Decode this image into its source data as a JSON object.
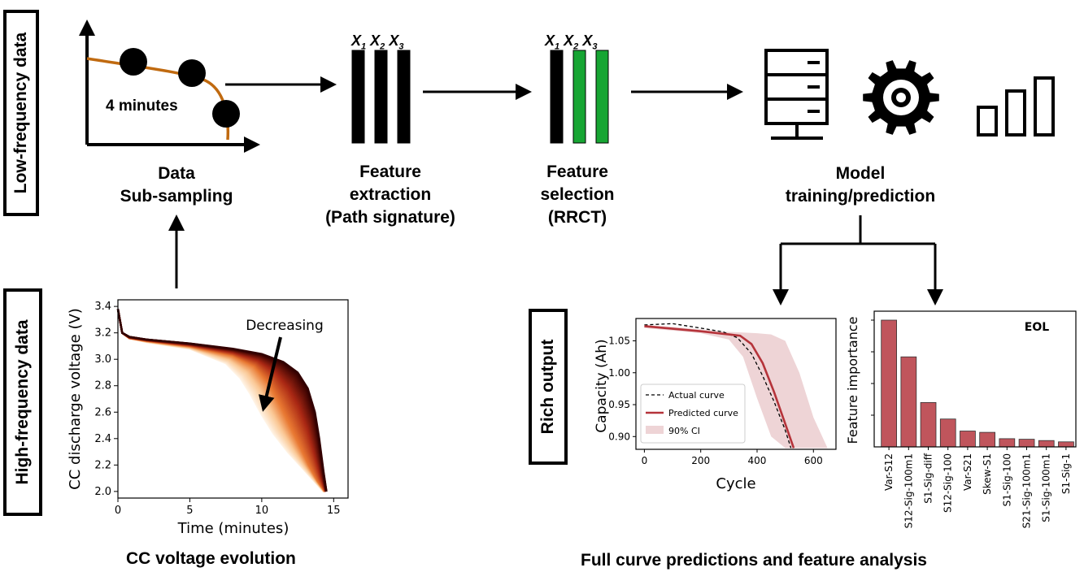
{
  "side_boxes": {
    "low_frequency": "Low-frequency data",
    "high_frequency": "High-frequency data",
    "rich_output": "Rich output"
  },
  "steps": {
    "subsampling": {
      "line1": "Data",
      "line2": "Sub-sampling",
      "annotation": "4 minutes"
    },
    "extraction": {
      "line1": "Feature",
      "line2": "extraction",
      "line3": "(Path signature)"
    },
    "selection": {
      "line1": "Feature",
      "line2": "selection",
      "line3": "(RRCT)"
    },
    "model": {
      "line1": "Model",
      "line2": "training/prediction"
    }
  },
  "feature_symbols": {
    "x1_base": "X",
    "x1_sub": "1",
    "x2_base": "X",
    "x2_sub": "2",
    "x3_base": "X",
    "x3_sub": "3"
  },
  "feature_bars": {
    "extraction_colors": [
      "#000000",
      "#000000",
      "#000000"
    ],
    "selection_colors": [
      "#000000",
      "#17a533",
      "#17a533"
    ]
  },
  "icons": [
    "server-icon",
    "gear-icon",
    "bar-chart-icon"
  ],
  "colors": {
    "curve_orange": "#c06a10",
    "predicted_red": "#b5333a",
    "ci_fill": "#eed4d6",
    "importance_bar": "#c0555c",
    "selected_green": "#17a533"
  },
  "voltage_chart": {
    "ylabel": "CC discharge voltage (V)",
    "xlabel": "Time (minutes)",
    "annotation": "Decreasing",
    "caption": "CC voltage evolution",
    "xticks": [
      "0",
      "5",
      "10",
      "15"
    ],
    "yticks": [
      "2.0",
      "2.2",
      "2.4",
      "2.6",
      "2.8",
      "3.0",
      "3.2",
      "3.4"
    ]
  },
  "capacity_chart": {
    "ylabel": "Capacity (Ah)",
    "xlabel": "Cycle",
    "xticks": [
      "0",
      "200",
      "400",
      "600"
    ],
    "yticks": [
      "0.90",
      "0.95",
      "1.00",
      "1.05"
    ],
    "legend": [
      "Actual curve",
      "Predicted curve",
      "90% CI"
    ]
  },
  "importance_chart": {
    "ylabel": "Feature importance",
    "title": "EOL",
    "caption": "Full curve predictions and feature analysis"
  },
  "chart_data": [
    {
      "type": "line",
      "xlabel": "Time (minutes)",
      "ylabel": "CC discharge voltage (V)",
      "xlim": [
        0,
        16
      ],
      "ylim": [
        1.95,
        3.45
      ],
      "grid": false,
      "series": [
        {
          "x": [
            0,
            0.3,
            0.8,
            2,
            5,
            8,
            10,
            11.5,
            12.5,
            13.2,
            13.7,
            14.0,
            14.3,
            14.5
          ],
          "y": [
            3.38,
            3.2,
            3.17,
            3.15,
            3.12,
            3.08,
            3.04,
            2.98,
            2.9,
            2.78,
            2.6,
            2.4,
            2.15,
            2.0
          ]
        },
        {
          "x": [
            0,
            0.3,
            0.8,
            2,
            5,
            8,
            9.5,
            10.5,
            11.3,
            12.0,
            12.7,
            13.3,
            13.9,
            14.4
          ],
          "y": [
            3.38,
            3.2,
            3.16,
            3.14,
            3.1,
            3.03,
            2.95,
            2.82,
            2.66,
            2.5,
            2.34,
            2.2,
            2.08,
            2.0
          ]
        },
        {
          "x": [
            0,
            0.3,
            0.8,
            2,
            5,
            7.5,
            8.5,
            9.2,
            10.0,
            10.8,
            11.8,
            12.8,
            13.8,
            14.3
          ],
          "y": [
            3.38,
            3.2,
            3.16,
            3.13,
            3.08,
            2.97,
            2.86,
            2.74,
            2.58,
            2.44,
            2.3,
            2.18,
            2.06,
            2.0
          ]
        }
      ]
    },
    {
      "type": "line",
      "xlabel": "Cycle",
      "ylabel": "Capacity (Ah)",
      "xlim": [
        -30,
        680
      ],
      "ylim": [
        0.88,
        1.085
      ],
      "legend": "bottom-left",
      "series": [
        {
          "name": "Actual curve",
          "x": [
            0,
            100,
            200,
            280,
            330,
            380,
            420,
            460,
            500,
            520
          ],
          "y": [
            1.075,
            1.077,
            1.07,
            1.064,
            1.055,
            1.03,
            0.995,
            0.955,
            0.91,
            0.882
          ]
        },
        {
          "name": "Predicted curve",
          "x": [
            0,
            100,
            200,
            300,
            340,
            380,
            420,
            460,
            500,
            530
          ],
          "y": [
            1.073,
            1.069,
            1.065,
            1.06,
            1.058,
            1.045,
            1.015,
            0.97,
            0.92,
            0.882
          ]
        },
        {
          "name": "90% CI",
          "x": [
            0,
            100,
            200,
            300,
            350,
            400,
            450,
            500,
            550,
            600,
            650
          ],
          "lower": [
            1.07,
            1.066,
            1.062,
            1.052,
            1.025,
            0.96,
            0.9,
            0.882,
            0.882,
            0.882,
            0.882
          ],
          "upper": [
            1.075,
            1.072,
            1.068,
            1.064,
            1.063,
            1.062,
            1.06,
            1.05,
            1.0,
            0.93,
            0.882
          ]
        }
      ]
    },
    {
      "type": "bar",
      "title": "EOL",
      "ylabel": "Feature importance",
      "categories": [
        "Var-S12",
        "S12-Sig-100m1",
        "S1-Sig-diff",
        "S12-Sig-100",
        "Var-S21",
        "Skew-S1",
        "S1-Sig-100",
        "S21-Sig-100m1",
        "S1-Sig-100m1",
        "S1-Sig-1"
      ],
      "values": [
        1.0,
        0.71,
        0.35,
        0.22,
        0.125,
        0.115,
        0.065,
        0.06,
        0.05,
        0.04
      ],
      "ylim": [
        0,
        1.0
      ]
    }
  ]
}
